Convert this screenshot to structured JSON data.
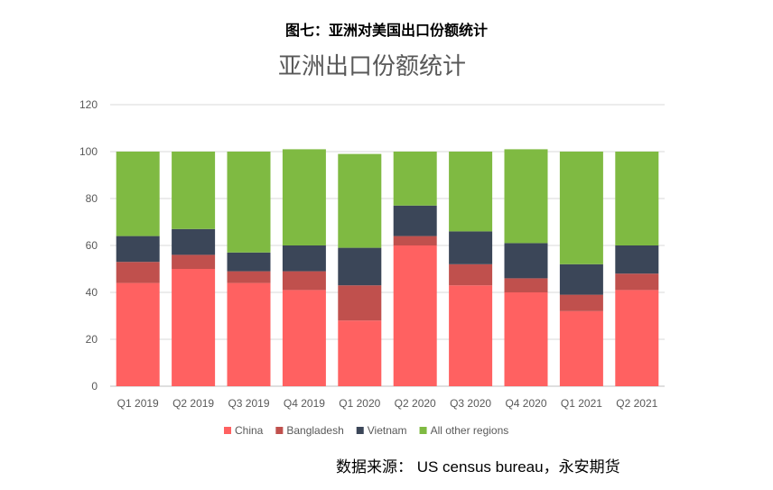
{
  "figure_title": "图七：亚洲对美国出口份额统计",
  "source_note": "数据来源：  US census bureau，永安期货",
  "chart_data": {
    "type": "bar",
    "stacked": true,
    "title": "亚洲出口份额统计",
    "xlabel": "",
    "ylabel": "",
    "ylim": [
      0,
      120
    ],
    "yticks": [
      0,
      20,
      40,
      60,
      80,
      100,
      120
    ],
    "grid": true,
    "legend_position": "bottom",
    "categories": [
      "Q1 2019",
      "Q2 2019",
      "Q3 2019",
      "Q4 2019",
      "Q1 2020",
      "Q2 2020",
      "Q3 2020",
      "Q4 2020",
      "Q1 2021",
      "Q2 2021"
    ],
    "series": [
      {
        "name": "China",
        "color": "#ff6161",
        "values": [
          44,
          50,
          44,
          41,
          28,
          60,
          43,
          40,
          32,
          41
        ]
      },
      {
        "name": "Bangladesh",
        "color": "#c0504d",
        "values": [
          9,
          6,
          5,
          8,
          15,
          4,
          9,
          6,
          7,
          7
        ]
      },
      {
        "name": "Vietnam",
        "color": "#3b4658",
        "values": [
          11,
          11,
          8,
          11,
          16,
          13,
          14,
          15,
          13,
          12
        ]
      },
      {
        "name": "All other regions",
        "color": "#7fba42",
        "values": [
          36,
          33,
          43,
          41,
          40,
          23,
          34,
          40,
          48,
          40
        ]
      }
    ]
  }
}
